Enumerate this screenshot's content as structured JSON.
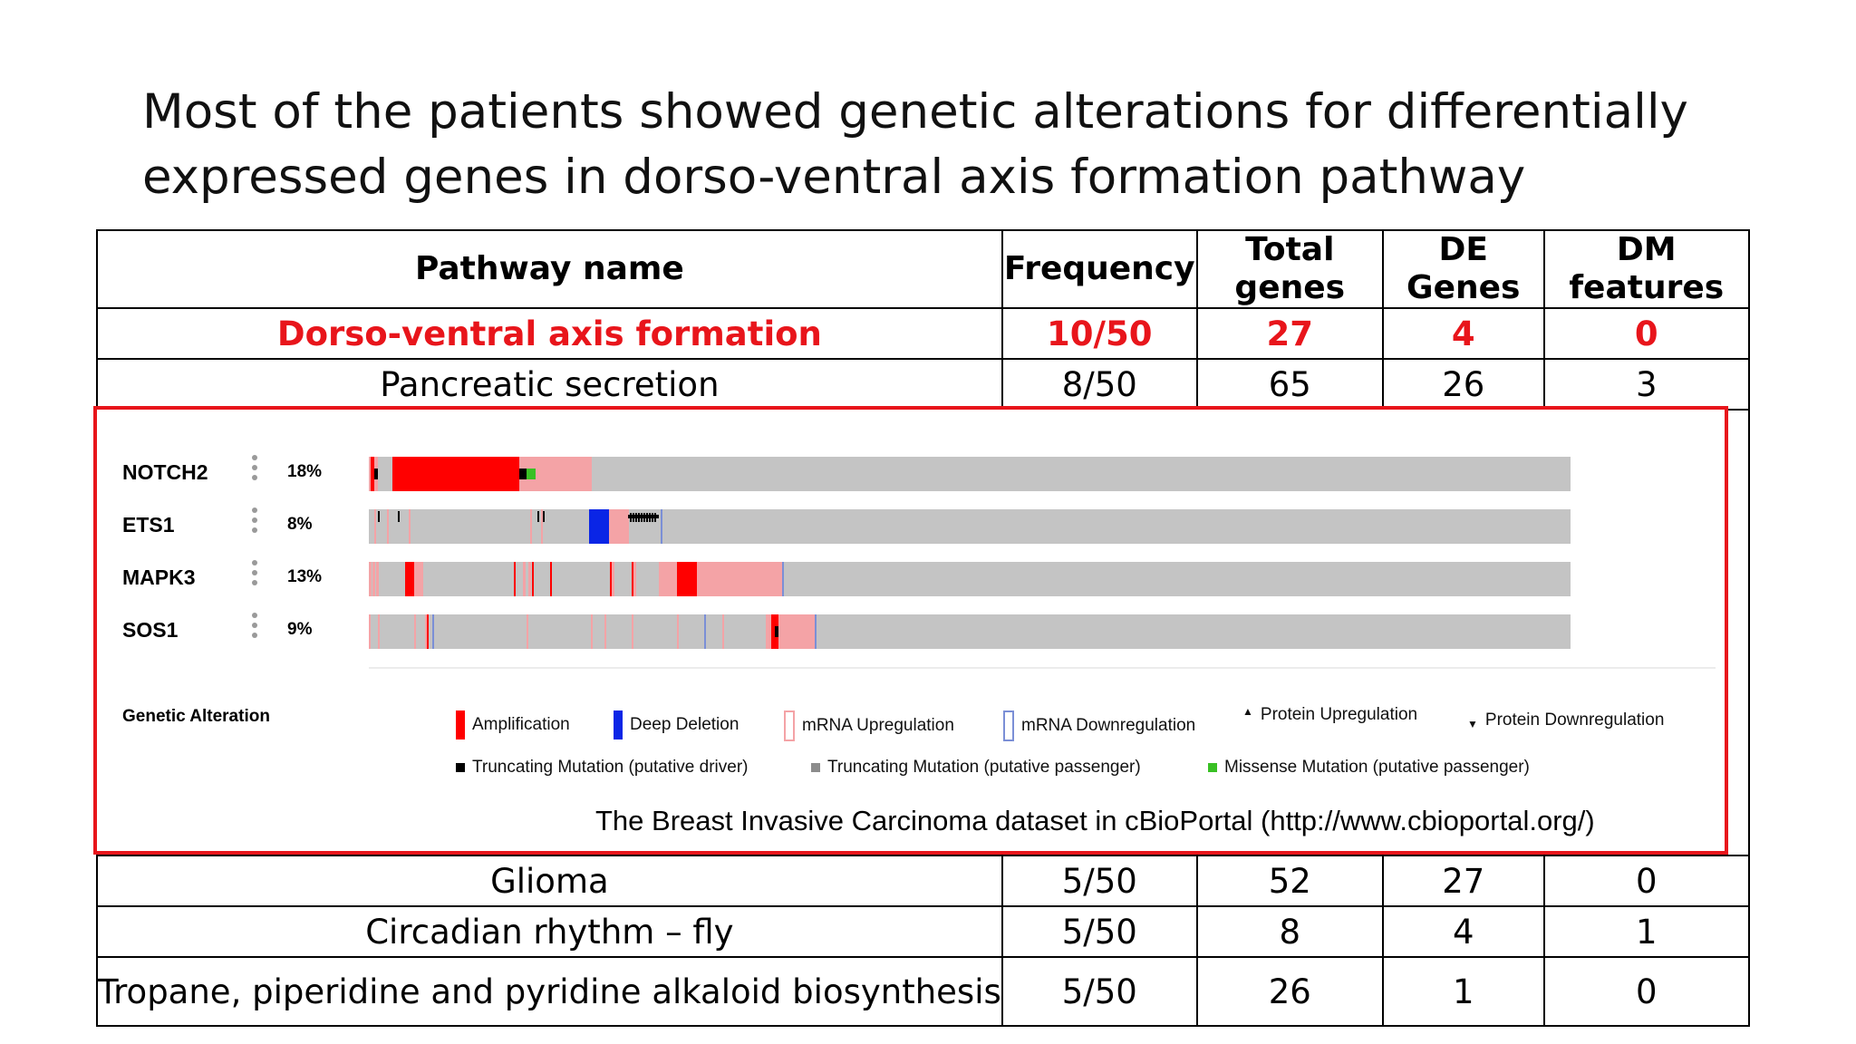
{
  "slide": {
    "title_line1": "Most of the patients showed genetic alterations for differentially",
    "title_line2": "expressed genes in dorso-ventral axis formation pathway"
  },
  "table": {
    "headers": [
      "Pathway name",
      "Frequency",
      "Total genes",
      "DE Genes",
      "DM features"
    ],
    "header_lines": {
      "total": [
        "Total",
        "genes"
      ],
      "de": [
        "DE",
        "Genes"
      ],
      "dm": [
        "DM",
        "features"
      ]
    },
    "rows": [
      {
        "name": "Dorso-ventral axis formation",
        "frequency": "10/50",
        "total": "27",
        "de": "4",
        "dm": "0",
        "highlight": true
      },
      {
        "name": "Pancreatic secretion",
        "frequency": "8/50",
        "total": "65",
        "de": "26",
        "dm": "3"
      },
      {
        "name": "Glioma",
        "frequency": "5/50",
        "total": "52",
        "de": "27",
        "dm": "0"
      },
      {
        "name": "Circadian rhythm – fly",
        "frequency": "5/50",
        "total": "8",
        "de": "4",
        "dm": "1"
      },
      {
        "name": "Tropane, piperidine and pyridine alkaloid biosynthesis",
        "frequency": "5/50",
        "total": "26",
        "de": "1",
        "dm": "0"
      }
    ]
  },
  "oncoprint": {
    "genes": [
      {
        "name": "NOTCH2",
        "pct": "18%"
      },
      {
        "name": "ETS1",
        "pct": "8%"
      },
      {
        "name": "MAPK3",
        "pct": "13%"
      },
      {
        "name": "SOS1",
        "pct": "9%"
      }
    ],
    "legend_title": "Genetic Alteration",
    "legend": [
      {
        "label": "Amplification",
        "icon": "amplification-swatch"
      },
      {
        "label": "Deep Deletion",
        "icon": "deep-deletion-swatch"
      },
      {
        "label": "mRNA Upregulation",
        "icon": "mrna-upregulation-swatch"
      },
      {
        "label": "mRNA Downregulation",
        "icon": "mrna-downregulation-swatch"
      },
      {
        "label": "Protein Upregulation",
        "icon": "triangle-up-icon"
      },
      {
        "label": "Protein Downregulation",
        "icon": "triangle-down-icon"
      },
      {
        "label": "Truncating Mutation (putative driver)",
        "icon": "truncating-driver-swatch"
      },
      {
        "label": "Truncating Mutation (putative passenger)",
        "icon": "truncating-passenger-swatch"
      },
      {
        "label": "Missense Mutation (putative passenger)",
        "icon": "missense-passenger-swatch"
      }
    ],
    "caption": "The Breast Invasive Carcinoma dataset in cBioPortal (http://www.cbioportal.org/)",
    "colors": {
      "highlight_text": "#e8151b",
      "box_border": "#e8151b",
      "track_gray": "#c4c4c4",
      "amplification": "#ff0000",
      "deep_deletion": "#0a25e6",
      "mrna_up": "#f4a3a6",
      "mrna_down": "#7b8fd6",
      "missense": "#39c024",
      "truncating_driver": "#000000",
      "truncating_passenger": "#8c8c8c"
    }
  }
}
